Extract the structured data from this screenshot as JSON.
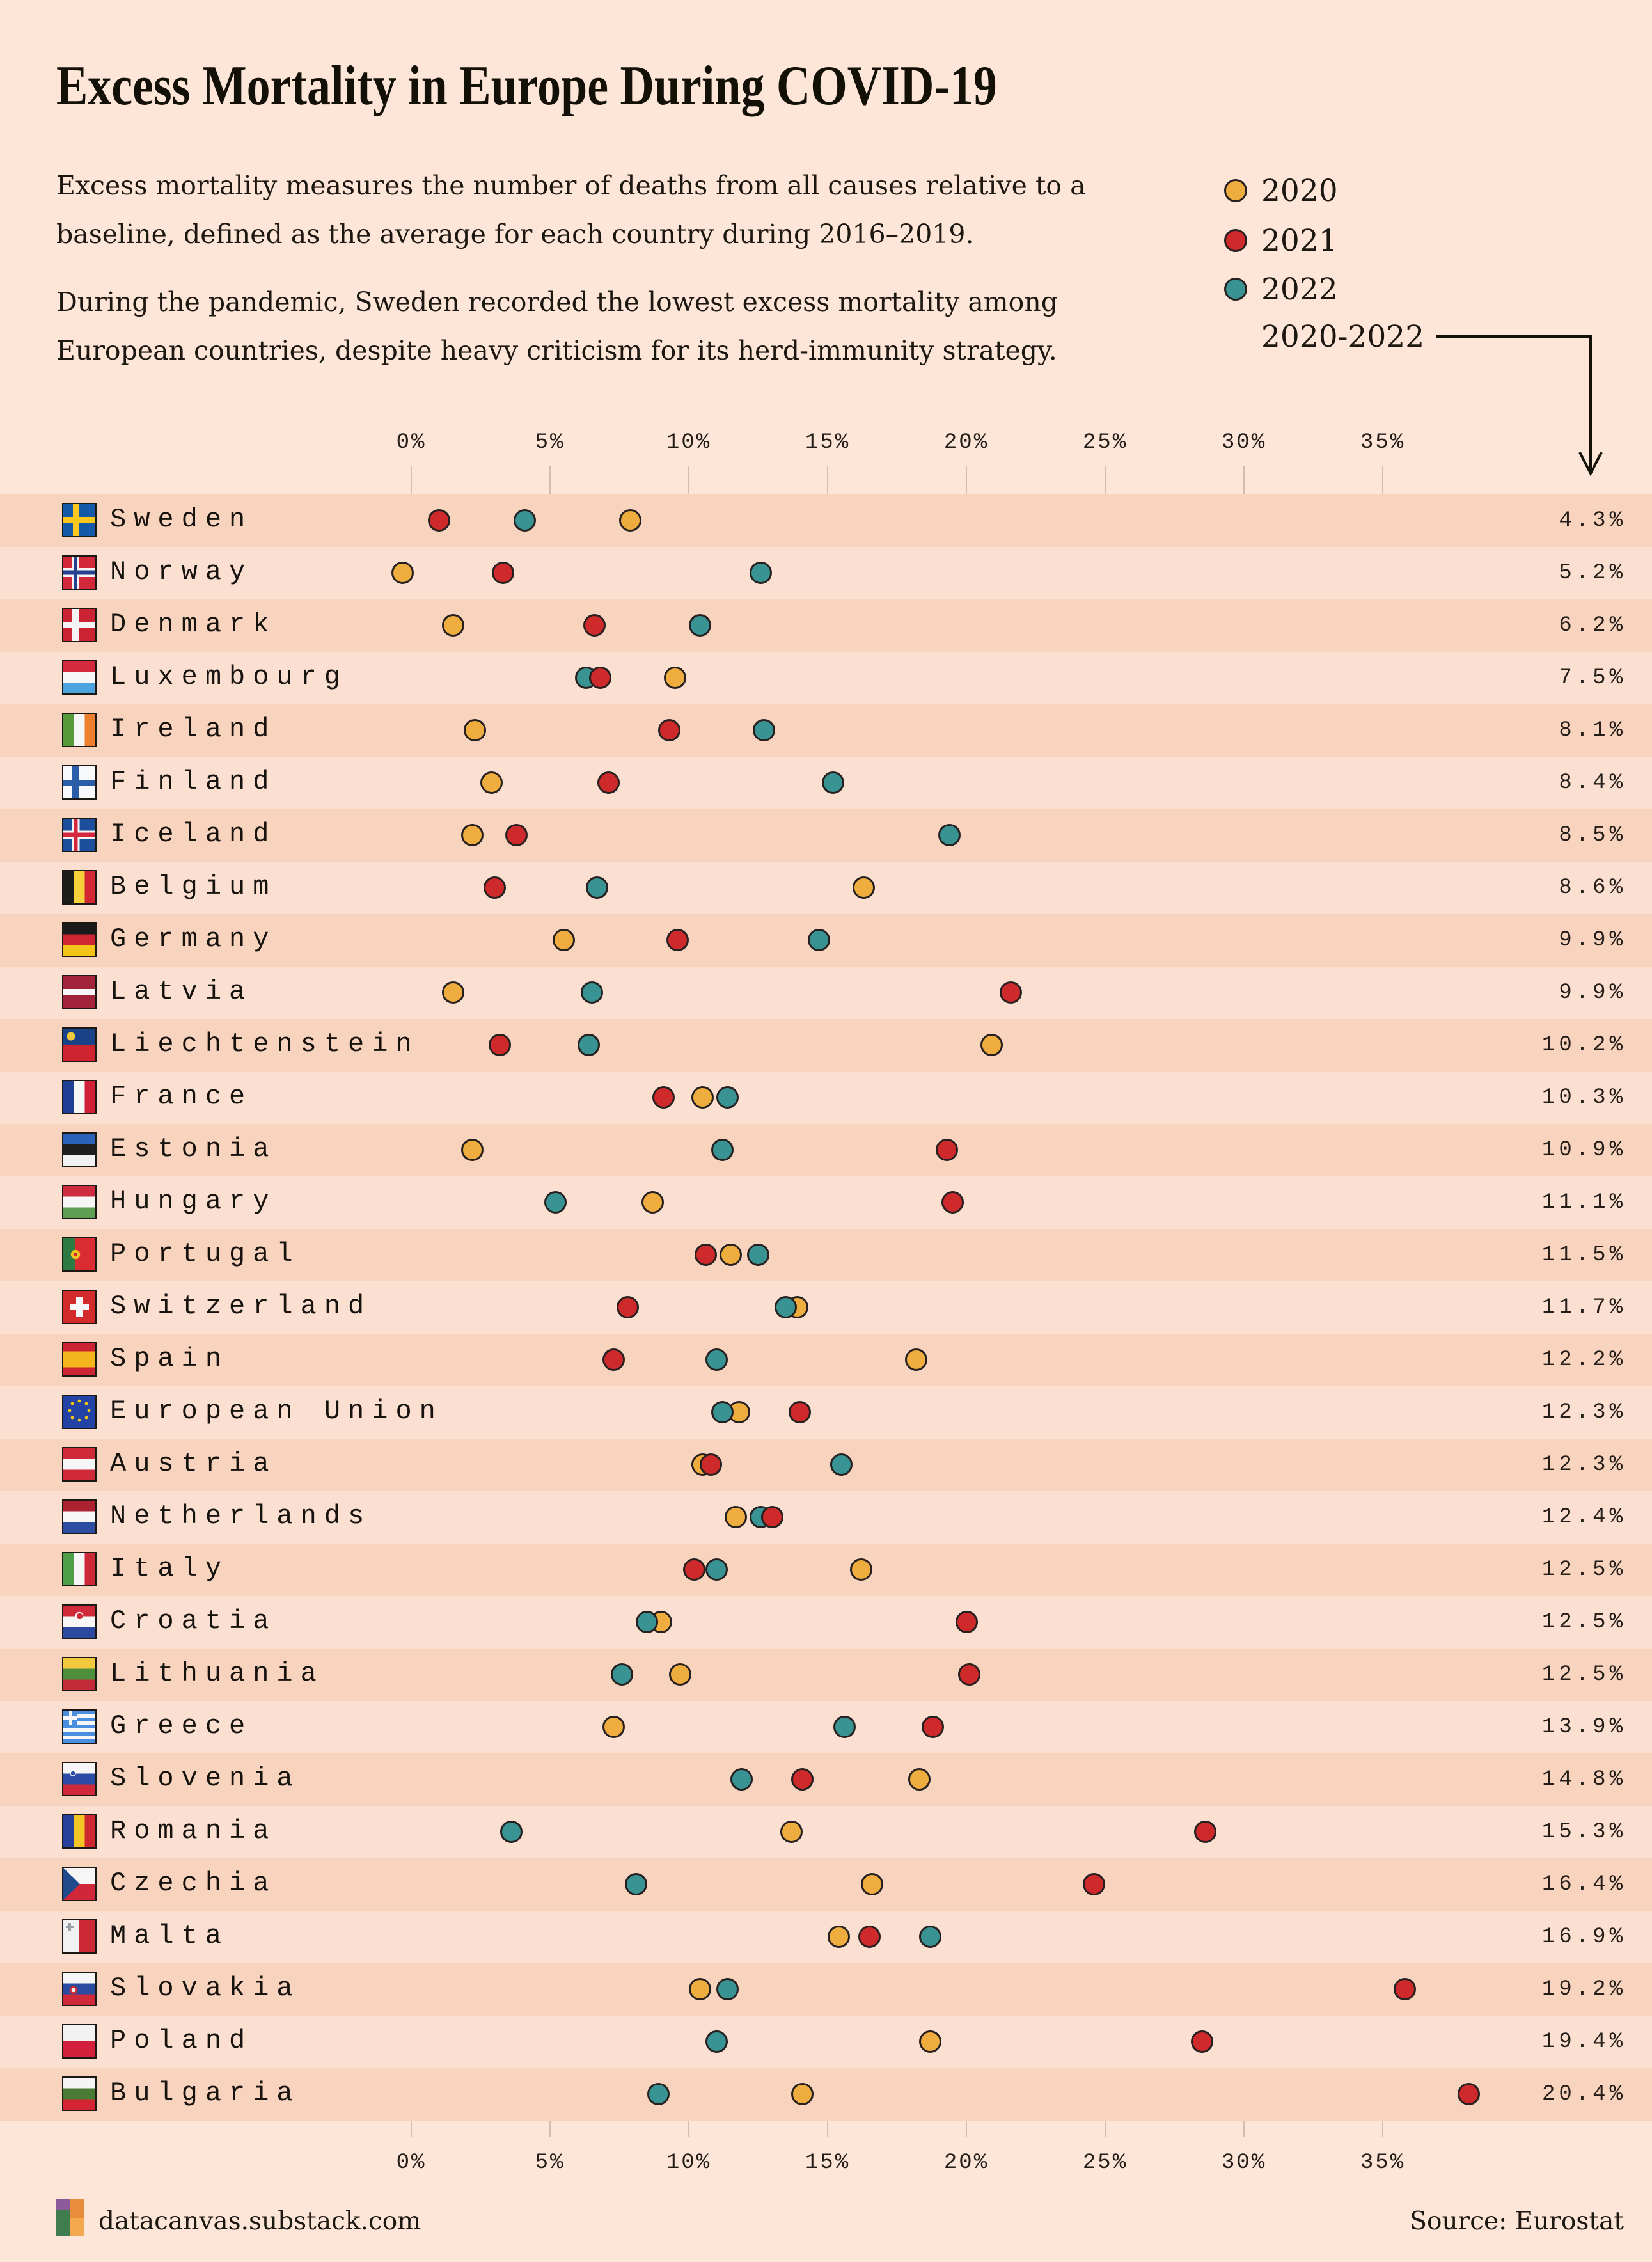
{
  "page": {
    "background": "#fde5d8",
    "ink": "#171310",
    "band_dark": "#f8d3be",
    "band_light": "#fbdfd1",
    "gridline": "#cbb5a9"
  },
  "title": "Excess Mortality in Europe During COVID-19",
  "intro": {
    "line1": "Excess mortality measures the number of deaths from all causes relative to a",
    "line2": "baseline, defined as the average for each country during 2016–2019.",
    "line3": "During the pandemic, Sweden recorded the lowest excess mortality among",
    "line4": "European countries, despite heavy criticism for its herd-immunity strategy."
  },
  "legend": {
    "items": [
      {
        "label": "2020",
        "color": "#eead3e"
      },
      {
        "label": "2021",
        "color": "#ce2a2b"
      },
      {
        "label": "2022",
        "color": "#399392"
      }
    ],
    "range_label": "2020-2022"
  },
  "axis": {
    "ticks": [
      0,
      5,
      10,
      15,
      20,
      25,
      30,
      35
    ],
    "suffix": "%"
  },
  "footer": {
    "site": "datacanvas.substack.com",
    "source": "Source: Eurostat"
  },
  "chart_data": {
    "type": "scatter",
    "title": "Excess Mortality in Europe During COVID-19",
    "xlabel": "",
    "x_ticks": [
      0,
      5,
      10,
      15,
      20,
      25,
      30,
      35
    ],
    "x_tick_suffix": "%",
    "xlim": [
      0,
      35
    ],
    "legend_position": "top-right",
    "grid": true,
    "series_names": [
      "2020",
      "2021",
      "2022"
    ],
    "series_colors": {
      "2020": "#eead3e",
      "2021": "#ce2a2b",
      "2022": "#399392"
    },
    "rows": [
      {
        "country": "Sweden",
        "total_2020_2022": "4.3%",
        "y2020": 7.9,
        "y2021": 1.0,
        "y2022": 4.1,
        "flag": [
          "linear-gradient(to right, transparent 30%, #f8c81c 30%, #f8c81c 50%, transparent 50%)",
          "linear-gradient(to bottom, transparent 40%, #f8c81c 40%, #f8c81c 60%, transparent 60%)",
          "linear-gradient(#155aa8,#155aa8)"
        ]
      },
      {
        "country": "Norway",
        "total_2020_2022": "5.2%",
        "y2020": -0.3,
        "y2021": 3.3,
        "y2022": 12.6,
        "flag": [
          "linear-gradient(to right, transparent 32%, #24408e 32%, #24408e 44%, transparent 44%)",
          "linear-gradient(to bottom, transparent 43%, #24408e 43%, #24408e 57%, transparent 57%)",
          "linear-gradient(to right, transparent 26%, #f4f4f4 26%, #f4f4f4 50%, transparent 50%)",
          "linear-gradient(to bottom, transparent 36%, #f4f4f4 36%, #f4f4f4 64%, transparent 64%)",
          "linear-gradient(#d22839,#d22839)"
        ]
      },
      {
        "country": "Denmark",
        "total_2020_2022": "6.2%",
        "y2020": 1.5,
        "y2021": 6.6,
        "y2022": 10.4,
        "flag": [
          "linear-gradient(to right, transparent 28%, #f4f4f4 28%, #f4f4f4 48%, transparent 48%)",
          "linear-gradient(to bottom, transparent 41%, #f4f4f4 41%, #f4f4f4 59%, transparent 59%)",
          "linear-gradient(#cb2333,#cb2333)"
        ]
      },
      {
        "country": "Luxembourg",
        "total_2020_2022": "7.5%",
        "y2020": 9.5,
        "y2021": 6.8,
        "y2022": 6.3,
        "flag": [
          "linear-gradient(to bottom, #d52a3e 33.4%, #f6f6f6 33.4% 66.7%, #4da3dd 66.7%)"
        ]
      },
      {
        "country": "Ireland",
        "total_2020_2022": "8.1%",
        "y2020": 2.3,
        "y2021": 9.3,
        "y2022": 12.7,
        "flag": [
          "linear-gradient(to right, #549a38 33.4%, #f6f6f6 33.4% 66.7%, #ee7f2f 66.7%)"
        ]
      },
      {
        "country": "Finland",
        "total_2020_2022": "8.4%",
        "y2020": 2.9,
        "y2021": 7.1,
        "y2022": 15.2,
        "flag": [
          "linear-gradient(to right, transparent 28%, #2c5da9 28%, #2c5da9 48%, transparent 48%)",
          "linear-gradient(to bottom, transparent 42%, #2c5da9 42%, #2c5da9 60%, transparent 60%)",
          "linear-gradient(#f6f8fa,#f6f8fa)"
        ]
      },
      {
        "country": "Iceland",
        "total_2020_2022": "8.5%",
        "y2020": 2.2,
        "y2021": 3.8,
        "y2022": 19.4,
        "flag": [
          "linear-gradient(to right, transparent 32%, #d4273e 32%, #d4273e 45%, transparent 45%)",
          "linear-gradient(to bottom, transparent 43%, #d4273e 43%, #d4273e 56%, transparent 56%)",
          "linear-gradient(to right, transparent 26%, #f4f4f4 26%, #f4f4f4 51%, transparent 51%)",
          "linear-gradient(to bottom, transparent 37%, #f4f4f4 37%, #f4f4f4 62%, transparent 62%)",
          "linear-gradient(#1c4e9c,#1c4e9c)"
        ]
      },
      {
        "country": "Belgium",
        "total_2020_2022": "8.6%",
        "y2020": 16.3,
        "y2021": 3.0,
        "y2022": 6.7,
        "flag": [
          "linear-gradient(to right, #1d1d1b 33.4%, #f6d23c 33.4% 66.7%, #d32833 66.7%)"
        ]
      },
      {
        "country": "Germany",
        "total_2020_2022": "9.9%",
        "y2020": 5.5,
        "y2021": 9.6,
        "y2022": 14.7,
        "flag": [
          "linear-gradient(to bottom, #1a1a1a 33.4%, #cf2431 33.4% 66.7%, #f5c418 66.7%)"
        ]
      },
      {
        "country": "Latvia",
        "total_2020_2022": "9.9%",
        "y2020": 1.5,
        "y2021": 21.6,
        "y2022": 6.5,
        "flag": [
          "linear-gradient(to bottom, #a2243a 40%, #f6f6f6 40% 60%, #a2243a 60%)"
        ]
      },
      {
        "country": "Liechtenstein",
        "total_2020_2022": "10.2%",
        "y2020": 20.9,
        "y2021": 3.2,
        "y2022": 6.4,
        "flag": [
          "radial-gradient(circle, #f0ca3c 0 6px, transparent 7px) @ 5px 5px / 14px 14px",
          "linear-gradient(to bottom, #1a4289 50%, #cf2430 50%)"
        ]
      },
      {
        "country": "France",
        "total_2020_2022": "10.3%",
        "y2020": 10.5,
        "y2021": 9.1,
        "y2022": 11.4,
        "flag": [
          "linear-gradient(to right, #1e3f94 33.4%, #f6f6f6 33.4% 66.7%, #d21f38 66.7%)"
        ]
      },
      {
        "country": "Estonia",
        "total_2020_2022": "10.9%",
        "y2020": 2.2,
        "y2021": 19.3,
        "y2022": 11.2,
        "flag": [
          "linear-gradient(to bottom, #2b63b8 33.4%, #1f1f1f 33.4% 66.7%, #f2f2f2 66.7%)"
        ]
      },
      {
        "country": "Hungary",
        "total_2020_2022": "11.1%",
        "y2020": 8.7,
        "y2021": 19.5,
        "y2022": 5.2,
        "flag": [
          "linear-gradient(to bottom, #cc2c3d 33.4%, #f6f6f6 33.4% 66.7%, #5d9e53 66.7%)"
        ]
      },
      {
        "country": "Portugal",
        "total_2020_2022": "11.5%",
        "y2020": 11.5,
        "y2021": 10.6,
        "y2022": 12.5,
        "flag": [
          "radial-gradient(circle, #d02a32 0 3px, #f0c420 3px 7px, transparent 7.5px) @ 8px 14px / 22px 22px",
          "linear-gradient(to right, #2e7a43 38%, #da2a32 38%)"
        ]
      },
      {
        "country": "Switzerland",
        "total_2020_2022": "11.7%",
        "y2020": 13.9,
        "y2021": 7.8,
        "y2022": 13.5,
        "flag": [
          "linear-gradient(#f6f6f6,#f6f6f6) @ 20px 10px / 10px 30px",
          "linear-gradient(#f6f6f6,#f6f6f6) @ 10px 20px / 30px 10px",
          "linear-gradient(#d32b2b,#d32b2b)"
        ]
      },
      {
        "country": "Spain",
        "total_2020_2022": "12.2%",
        "y2020": 18.2,
        "y2021": 7.3,
        "y2022": 11.0,
        "flag": [
          "linear-gradient(to bottom, #cd2433 25%, #f5b51c 25% 75%, #cd2433 75%)"
        ]
      },
      {
        "country": "European Union",
        "total_2020_2022": "12.3%",
        "y2020": 11.8,
        "y2021": 14.0,
        "y2022": 11.2,
        "flag": [
          "radial-gradient(circle, #f6c90e 0 2.2px, transparent 2.6px) @ 22px 5px / 6px 6px",
          "radial-gradient(circle, #f6c90e 0 2.2px, transparent 2.6px) @ 32.6px 9.4px / 6px 6px",
          "radial-gradient(circle, #f6c90e 0 2.2px, transparent 2.6px) @ 37px 20px / 6px 6px",
          "radial-gradient(circle, #f6c90e 0 2.2px, transparent 2.6px) @ 32.6px 30.6px / 6px 6px",
          "radial-gradient(circle, #f6c90e 0 2.2px, transparent 2.6px) @ 22px 35px / 6px 6px",
          "radial-gradient(circle, #f6c90e 0 2.2px, transparent 2.6px) @ 11.4px 30.6px / 6px 6px",
          "radial-gradient(circle, #f6c90e 0 2.2px, transparent 2.6px) @ 7px 20px / 6px 6px",
          "radial-gradient(circle, #f6c90e 0 2.2px, transparent 2.6px) @ 11.4px 9.4px / 6px 6px",
          "linear-gradient(#2243a5,#2243a5)"
        ]
      },
      {
        "country": "Austria",
        "total_2020_2022": "12.3%",
        "y2020": 10.5,
        "y2021": 10.8,
        "y2022": 15.5,
        "flag": [
          "linear-gradient(to bottom, #d0293a 33.4%, #f6f6f6 33.4% 66.7%, #d0293a 66.7%)"
        ]
      },
      {
        "country": "Netherlands",
        "total_2020_2022": "12.4%",
        "y2020": 11.7,
        "y2021": 13.0,
        "y2022": 12.6,
        "flag": [
          "linear-gradient(to bottom, #ad2131 33.4%, #f6f6f6 33.4% 66.7%, #2d4ea0 66.7%)"
        ]
      },
      {
        "country": "Italy",
        "total_2020_2022": "12.5%",
        "y2020": 16.2,
        "y2021": 10.2,
        "y2022": 11.0,
        "flag": [
          "linear-gradient(to right, #4f9e48 33.4%, #f6f6f6 33.4% 66.7%, #cd2838 66.7%)"
        ]
      },
      {
        "country": "Croatia",
        "total_2020_2022": "12.5%",
        "y2020": 9.0,
        "y2021": 20.0,
        "y2022": 8.5,
        "flag": [
          "radial-gradient(circle, #d02a3a 0 4.5px, transparent 5px) @ 20.5px 11.5px / 9px 9px",
          "radial-gradient(circle, #f4f4f4 0 6px, transparent 6.5px) @ 17px 8px / 16px 16px",
          "linear-gradient(to bottom, #d02a3a 33.4%, #f6f6f6 33.4% 66.7%, #2b4aa0 66.7%)"
        ]
      },
      {
        "country": "Lithuania",
        "total_2020_2022": "12.5%",
        "y2020": 9.7,
        "y2021": 20.1,
        "y2022": 7.6,
        "flag": [
          "linear-gradient(to bottom, #f2c83c 33.4%, #4e8f3e 33.4% 66.7%, #c32a38 66.7%)"
        ]
      },
      {
        "country": "Greece",
        "total_2020_2022": "13.9%",
        "y2020": 7.3,
        "y2021": 18.8,
        "y2022": 15.6,
        "flag": [
          "linear-gradient(#f6f6f6,#f6f6f6) @ 0px 8.5px / 22px 5px",
          "linear-gradient(#f6f6f6,#f6f6f6) @ 8.5px 0px / 5px 22px",
          "linear-gradient(#4a8ee0,#4a8ee0) @ 0px 0px / 22px 22px",
          "repeating-linear-gradient(to bottom, #4a8ee0 0 5.6px, #f6f6f6 5.6px 11.2px)"
        ]
      },
      {
        "country": "Slovenia",
        "total_2020_2022": "14.8%",
        "y2020": 18.3,
        "y2021": 14.1,
        "y2022": 11.9,
        "flag": [
          "radial-gradient(circle, #2b4ba5 0 3px, transparent 3.5px) @ 11px 12px / 8px 8px",
          "radial-gradient(circle, #f4f4f4 0 4.5px, transparent 5px) @ 9px 10px / 12px 12px",
          "linear-gradient(to bottom, #f6f6f6 33.4%, #2b4ba5 33.4% 66.7%, #d02a3a 66.7%)"
        ]
      },
      {
        "country": "Romania",
        "total_2020_2022": "15.3%",
        "y2020": 13.7,
        "y2021": 28.6,
        "y2022": 3.6,
        "flag": [
          "linear-gradient(to right, #26409a 33.4%, #f4c525 33.4% 66.7%, #cf2732 66.7%)"
        ]
      },
      {
        "country": "Czechia",
        "total_2020_2022": "16.4%",
        "y2020": 16.6,
        "y2021": 24.6,
        "y2022": 8.1,
        "flag": [
          "linear-gradient(to bottom left, transparent 50%, #1f4a8c 50%) @ 0px 0px / 26px 25px",
          "linear-gradient(to top left, transparent 50%, #1f4a8c 50%) @ 0px 25px / 26px 25px",
          "linear-gradient(to bottom, #f6f6f6 50%, #d0273a 50%)"
        ]
      },
      {
        "country": "Malta",
        "total_2020_2022": "16.9%",
        "y2020": 15.4,
        "y2021": 16.5,
        "y2022": 18.7,
        "flag": [
          "linear-gradient(#9aa0a8,#9aa0a8) @ 8px 4px / 4px 12px",
          "linear-gradient(#9aa0a8,#9aa0a8) @ 4px 8px / 12px 4px",
          "linear-gradient(to right, #f1f1f1 50%, #cc2936 50%)"
        ]
      },
      {
        "country": "Slovakia",
        "total_2020_2022": "19.2%",
        "y2020": 10.4,
        "y2021": 35.8,
        "y2022": 11.4,
        "flag": [
          "radial-gradient(circle, #f6f6f6 0 3px, transparent 3.5px) @ 12px 23px / 8px 8px",
          "radial-gradient(circle, #d22730 0 6px, transparent 6.5px) @ 9px 20px / 14px 14px",
          "linear-gradient(to bottom, #f6f6f6 33.4%, #2b4ba0 33.4% 66.7%, #d02a3a 66.7%)"
        ]
      },
      {
        "country": "Poland",
        "total_2020_2022": "19.4%",
        "y2020": 18.7,
        "y2021": 28.5,
        "y2022": 11.0,
        "flag": [
          "linear-gradient(to bottom, #f2f2f2 50%, #d21f3c 50%)"
        ]
      },
      {
        "country": "Bulgaria",
        "total_2020_2022": "20.4%",
        "y2020": 14.1,
        "y2021": 38.1,
        "y2022": 8.9,
        "flag": [
          "linear-gradient(to bottom, #f4f4f4 33.4%, #4a7a33 33.4% 66.7%, #d22432 66.7%)"
        ]
      }
    ]
  },
  "logo": {
    "layers": [
      "linear-gradient(#8a5a9b,#8a5a9b) @ 0px 0px / 22px 16px",
      "linear-gradient(#3f7d4e,#3f7d4e) @ 0px 16px / 22px 42px",
      "linear-gradient(#e88d3c,#e88d3c) @ 22px 0px / 22px 30px",
      "linear-gradient(#f4a94e,#f4a94e) @ 22px 30px / 22px 28px"
    ]
  }
}
